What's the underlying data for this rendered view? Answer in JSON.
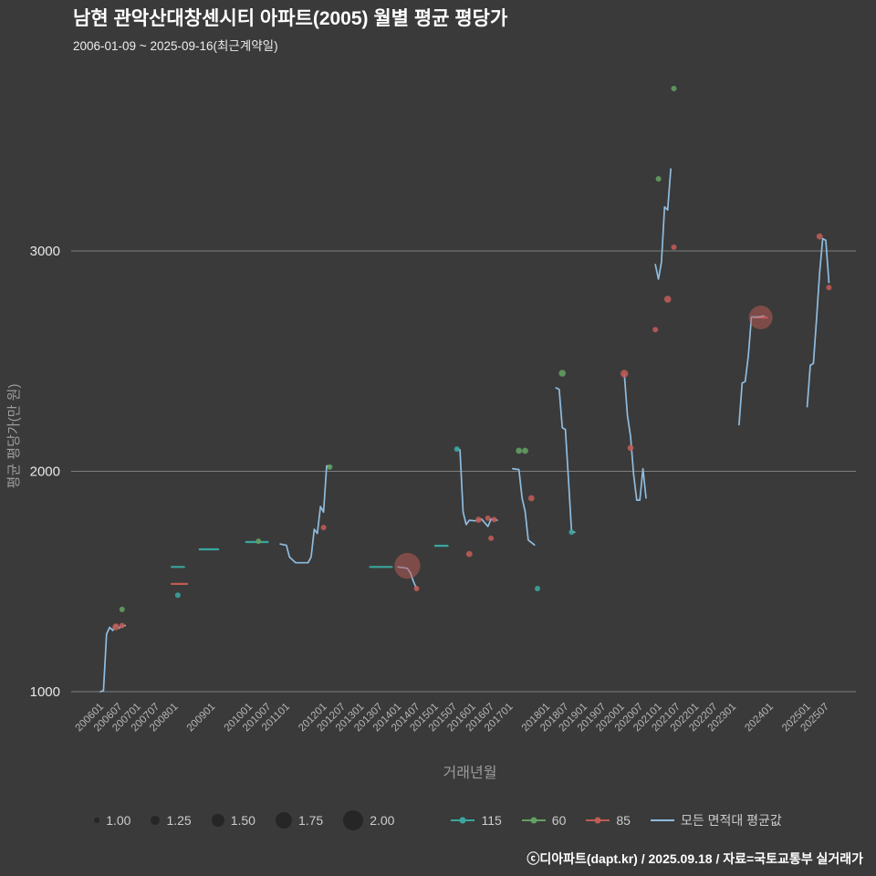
{
  "title": "남현 관악산대창센시티 아파트(2005) 월별 평균 평당가",
  "subtitle": "2006-01-09 ~ 2025-09-16(최근계약일)",
  "footer": "ⓒ디아파트(dapt.kr) / 2025.09.18 / 자료=국토교통부 실거래가",
  "colors": {
    "background": "#3a3a3a",
    "grid": "#cfcfcf",
    "axis_text": "#b6b6b6",
    "axis_title": "#9c9c9c",
    "y_tick": "#e8e8e8",
    "teal": "#3aa6a0",
    "green": "#62a162",
    "red": "#c05b55",
    "blue": "#8fbcdf"
  },
  "chart_data": {
    "type": "scatter",
    "title": "남현 관악산대창센시티 아파트(2005) 월별 평균 평당가",
    "subtitle": "2006-01-09 ~ 2025-09-16(최근계약일)",
    "xlabel": "거래년월",
    "ylabel": "평균 평당가(만 원)",
    "yticks": [
      1000,
      2000,
      3000
    ],
    "ylim": [
      950,
      3850
    ],
    "xticks": [
      "200601",
      "200607",
      "200701",
      "200707",
      "200801",
      "200901",
      "201001",
      "201007",
      "201101",
      "201201",
      "201207",
      "201301",
      "201307",
      "201401",
      "201407",
      "201501",
      "201507",
      "201601",
      "201607",
      "201701",
      "201801",
      "201807",
      "201901",
      "201907",
      "202001",
      "202007",
      "202101",
      "202107",
      "202201",
      "202207",
      "202301",
      "202401",
      "202501",
      "202507"
    ],
    "size_legend": [
      "1.00",
      "1.25",
      "1.50",
      "1.75",
      "2.00"
    ],
    "series": [
      {
        "name": "115",
        "color_key": "teal",
        "points": [
          [
            "200802",
            1438,
            1
          ],
          [
            "201508",
            2101,
            1
          ],
          [
            "201710",
            1468,
            1
          ],
          [
            "201809",
            1724,
            1
          ]
        ],
        "segments": [
          [
            [
              "200712",
              1566
            ],
            [
              "200804",
              1566
            ]
          ],
          [
            [
              "200809",
              1646
            ],
            [
              "200903",
              1646
            ]
          ],
          [
            [
              "200912",
              1679
            ],
            [
              "201007",
              1679
            ]
          ],
          [
            [
              "201304",
              1566
            ],
            [
              "201311",
              1566
            ]
          ],
          [
            [
              "201501",
              1662
            ],
            [
              "201505",
              1662
            ]
          ]
        ]
      },
      {
        "name": "60",
        "color_key": "green",
        "points": [
          [
            "200608",
            1373,
            1
          ],
          [
            "201004",
            1683,
            1
          ],
          [
            "201203",
            2019,
            1
          ],
          [
            "201704",
            2093,
            1.05
          ],
          [
            "201706",
            2093,
            1.05
          ],
          [
            "201806",
            2445,
            1.1
          ],
          [
            "202101",
            3327,
            1
          ],
          [
            "202106",
            3737,
            1
          ]
        ]
      },
      {
        "name": "85",
        "color_key": "red",
        "points": [
          [
            "200606",
            1294,
            1.1
          ],
          [
            "200608",
            1300,
            1
          ],
          [
            "201201",
            1745,
            1
          ],
          [
            "201404",
            1571,
            2.4
          ],
          [
            "201407",
            1468,
            1
          ],
          [
            "201512",
            1625,
            1.05
          ],
          [
            "201603",
            1780,
            1.05
          ],
          [
            "201606",
            1787,
            1
          ],
          [
            "201607",
            1696,
            1
          ],
          [
            "201608",
            1781,
            1
          ],
          [
            "201708",
            1878,
            1.05
          ],
          [
            "202002",
            2443,
            1.15
          ],
          [
            "202004",
            2106,
            1.05
          ],
          [
            "202012",
            2643,
            1
          ],
          [
            "202104",
            2781,
            1.1
          ],
          [
            "202106",
            3017,
            1
          ],
          [
            "202310",
            2698,
            2.25
          ],
          [
            "202505",
            3066,
            1.05
          ],
          [
            "202508",
            2834,
            1
          ]
        ],
        "segments": [
          [
            [
              "200712",
              1489
            ],
            [
              "200805",
              1489
            ]
          ],
          [
            [
              "202308",
              2698
            ],
            [
              "202312",
              2698
            ]
          ]
        ]
      },
      {
        "name": "모든 면적대 평균값",
        "color_key": "blue",
        "type": "line",
        "segments": [
          [
            [
              "200601",
              1000
            ],
            [
              "200602",
              1005
            ],
            [
              "200603",
              1262
            ],
            [
              "200604",
              1292
            ],
            [
              "200605",
              1278
            ],
            [
              "200606",
              1303
            ],
            [
              "200607",
              1288
            ],
            [
              "200608",
              1298
            ],
            [
              "200609",
              1300
            ]
          ],
          [
            [
              "201011",
              1670
            ],
            [
              "201101",
              1664
            ],
            [
              "201102",
              1611
            ],
            [
              "201104",
              1585
            ],
            [
              "201108",
              1585
            ],
            [
              "201109",
              1612
            ],
            [
              "201110",
              1737
            ],
            [
              "201111",
              1718
            ],
            [
              "201112",
              1840
            ],
            [
              "201201",
              1815
            ],
            [
              "201202",
              2025
            ],
            [
              "201203",
              2022
            ]
          ],
          [
            [
              "201401",
              1566
            ],
            [
              "201402",
              1564
            ],
            [
              "201404",
              1560
            ],
            [
              "201405",
              1540
            ],
            [
              "201406",
              1500
            ],
            [
              "201407",
              1468
            ]
          ],
          [
            [
              "201508",
              2103
            ],
            [
              "201509",
              2097
            ],
            [
              "201510",
              1815
            ],
            [
              "201511",
              1758
            ],
            [
              "201512",
              1778
            ],
            [
              "201602",
              1775
            ],
            [
              "201604",
              1783
            ],
            [
              "201606",
              1750
            ],
            [
              "201607",
              1783
            ],
            [
              "201609",
              1778
            ]
          ],
          [
            [
              "201702",
              2012
            ],
            [
              "201704",
              2008
            ],
            [
              "201705",
              1880
            ],
            [
              "201706",
              1818
            ],
            [
              "201707",
              1688
            ],
            [
              "201709",
              1666
            ]
          ],
          [
            [
              "201804",
              2379
            ],
            [
              "201805",
              2372
            ],
            [
              "201806",
              2198
            ],
            [
              "201807",
              2190
            ],
            [
              "201808",
              1962
            ],
            [
              "201809",
              1724
            ],
            [
              "201810",
              1724
            ]
          ],
          [
            [
              "202002",
              2441
            ],
            [
              "202003",
              2254
            ],
            [
              "202004",
              2159
            ],
            [
              "202005",
              1985
            ],
            [
              "202006",
              1869
            ],
            [
              "202007",
              1869
            ],
            [
              "202008",
              2012
            ],
            [
              "202009",
              1879
            ]
          ],
          [
            [
              "202012",
              2938
            ],
            [
              "202101",
              2872
            ],
            [
              "202102",
              2950
            ],
            [
              "202103",
              3200
            ],
            [
              "202104",
              3186
            ],
            [
              "202105",
              3372
            ]
          ],
          [
            [
              "202303",
              2211
            ],
            [
              "202304",
              2400
            ],
            [
              "202305",
              2408
            ],
            [
              "202306",
              2525
            ],
            [
              "202307",
              2700
            ],
            [
              "202309",
              2700
            ],
            [
              "202311",
              2705
            ]
          ],
          [
            [
              "202501",
              2293
            ],
            [
              "202502",
              2481
            ],
            [
              "202503",
              2489
            ],
            [
              "202504",
              2688
            ],
            [
              "202505",
              2900
            ],
            [
              "202506",
              3056
            ],
            [
              "202507",
              3048
            ],
            [
              "202508",
              2857
            ]
          ]
        ]
      }
    ]
  }
}
